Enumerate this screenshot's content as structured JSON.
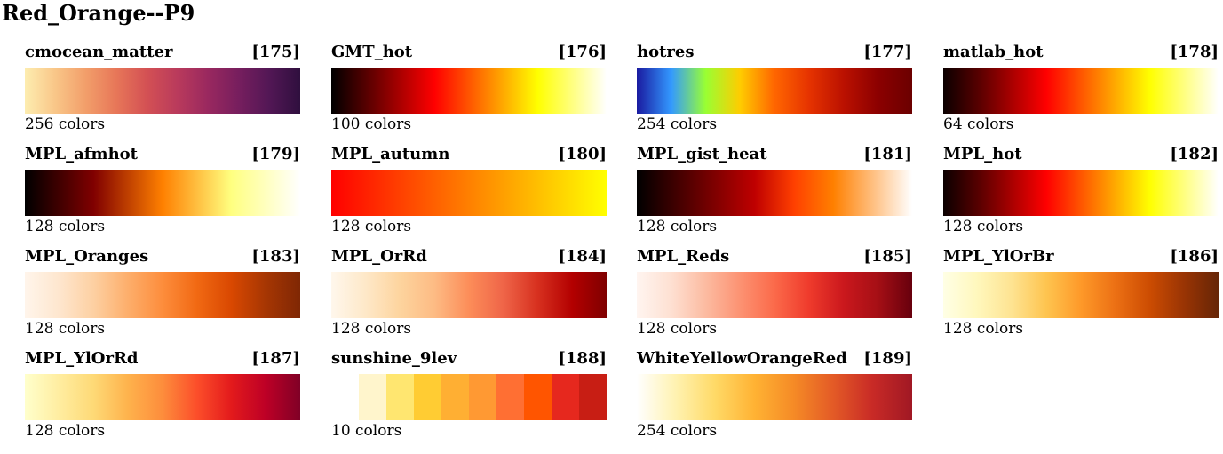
{
  "page": {
    "title": "Red_Orange--P9"
  },
  "colormaps": [
    {
      "name": "cmocean_matter",
      "index": "[175]",
      "count": "256 colors",
      "stops": [
        "#fdedb0",
        "#f9c688",
        "#f29e6a",
        "#e77658",
        "#d35054",
        "#b93a5c",
        "#99285f",
        "#761e5e",
        "#521755",
        "#2f0f3e"
      ]
    },
    {
      "name": "GMT_hot",
      "index": "[176]",
      "count": "100 colors",
      "stops": [
        "#000000",
        "#550000",
        "#aa0000",
        "#ff0000",
        "#ff5500",
        "#ffaa00",
        "#ffff00",
        "#ffff80",
        "#ffffff"
      ]
    },
    {
      "name": "hotres",
      "index": "[177]",
      "count": "254 colors",
      "stops": [
        "#1a1aa0",
        "#3399ff",
        "#99ff33",
        "#ffcc00",
        "#ff6600",
        "#e63300",
        "#bb1100",
        "#8c0000",
        "#6b0000"
      ]
    },
    {
      "name": "matlab_hot",
      "index": "[178]",
      "count": "64 colors",
      "stops": [
        "#0b0000",
        "#550000",
        "#aa0000",
        "#ff0000",
        "#ff5500",
        "#ffaa00",
        "#ffff00",
        "#ffff80",
        "#ffffff"
      ]
    },
    {
      "name": "MPL_afmhot",
      "index": "[179]",
      "count": "128 colors",
      "stops": [
        "#000000",
        "#400000",
        "#800000",
        "#bf4000",
        "#ff8000",
        "#ffbf40",
        "#ffff80",
        "#ffffbf",
        "#ffffff"
      ]
    },
    {
      "name": "MPL_autumn",
      "index": "[180]",
      "count": "128 colors",
      "stops": [
        "#ff0000",
        "#ff4000",
        "#ff8000",
        "#ffbf00",
        "#ffff00"
      ]
    },
    {
      "name": "MPL_gist_heat",
      "index": "[181]",
      "count": "128 colors",
      "stops": [
        "#000000",
        "#400000",
        "#800000",
        "#bf0000",
        "#ff4000",
        "#ff8000",
        "#ffbf80",
        "#ffffff"
      ]
    },
    {
      "name": "MPL_hot",
      "index": "[182]",
      "count": "128 colors",
      "stops": [
        "#0b0000",
        "#550000",
        "#aa0000",
        "#ff0000",
        "#ff5500",
        "#ffaa00",
        "#ffff00",
        "#ffff80",
        "#ffffff"
      ]
    },
    {
      "name": "MPL_Oranges",
      "index": "[183]",
      "count": "128 colors",
      "stops": [
        "#fff5eb",
        "#fee6ce",
        "#fdd0a2",
        "#fdae6b",
        "#fd8d3c",
        "#f16913",
        "#d94801",
        "#a63603",
        "#7f2704"
      ]
    },
    {
      "name": "MPL_OrRd",
      "index": "[184]",
      "count": "128 colors",
      "stops": [
        "#fff7ec",
        "#fee8c8",
        "#fdd49e",
        "#fdbb84",
        "#fc8d59",
        "#ef6548",
        "#d7301f",
        "#b30000",
        "#7f0000"
      ]
    },
    {
      "name": "MPL_Reds",
      "index": "[185]",
      "count": "128 colors",
      "stops": [
        "#fff5f0",
        "#fee0d2",
        "#fcbba1",
        "#fc9272",
        "#fb6a4a",
        "#ef3b2c",
        "#cb181d",
        "#a50f15",
        "#67000d"
      ]
    },
    {
      "name": "MPL_YlOrBr",
      "index": "[186]",
      "count": "128 colors",
      "stops": [
        "#ffffe5",
        "#fff7bc",
        "#fee391",
        "#fec44f",
        "#fe9929",
        "#ec7014",
        "#cc4c02",
        "#993404",
        "#662506"
      ]
    },
    {
      "name": "MPL_YlOrRd",
      "index": "[187]",
      "count": "128 colors",
      "stops": [
        "#ffffcc",
        "#ffeda0",
        "#fed976",
        "#feb24c",
        "#fd8d3c",
        "#fc4e2a",
        "#e31a1c",
        "#bd0026",
        "#800026"
      ]
    },
    {
      "name": "sunshine_9lev",
      "index": "[188]",
      "count": "10 colors",
      "segments": [
        "#ffffff",
        "#fff5cc",
        "#ffe670",
        "#ffcc33",
        "#ffaf33",
        "#ff9933",
        "#ff6f33",
        "#ff5500",
        "#e6281e",
        "#c81e14"
      ]
    },
    {
      "name": "WhiteYellowOrangeRed",
      "index": "[189]",
      "count": "254 colors",
      "stops": [
        "#ffffff",
        "#fff2b0",
        "#ffd966",
        "#ffb233",
        "#f58a26",
        "#e35a26",
        "#c82a26",
        "#a01824"
      ]
    }
  ]
}
